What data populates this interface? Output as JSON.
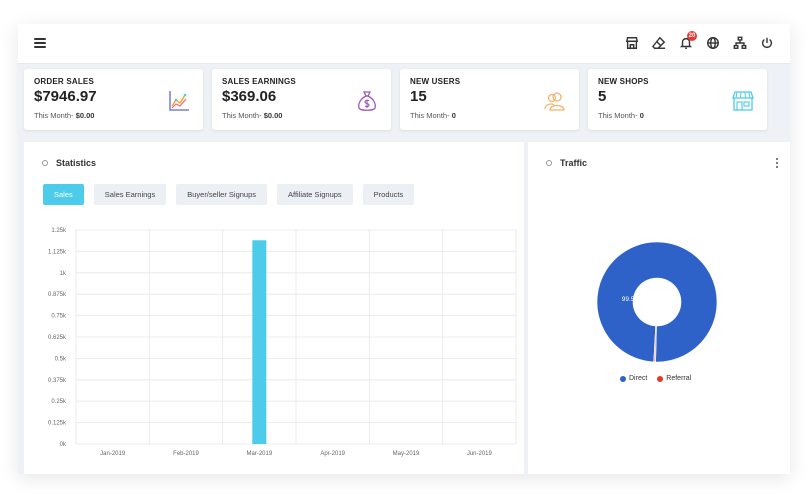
{
  "topbar": {
    "menu_icon": "hamburger-icon",
    "icons": [
      "store-icon",
      "eraser-icon",
      "bell-icon",
      "globe-icon",
      "sitemap-icon",
      "power-icon"
    ],
    "notification_count": "20"
  },
  "cards": [
    {
      "title": "ORDER SALES",
      "value": "$7946.97",
      "sub_label": "This Month-",
      "sub_value": "$0.00",
      "icon": "chart-trend-icon"
    },
    {
      "title": "SALES EARNINGS",
      "value": "$369.06",
      "sub_label": "This Month-",
      "sub_value": "$0.00",
      "icon": "money-bag-icon"
    },
    {
      "title": "NEW USERS",
      "value": "15",
      "sub_label": "This Month-",
      "sub_value": "0",
      "icon": "users-icon"
    },
    {
      "title": "NEW SHOPS",
      "value": "5",
      "sub_label": "This Month-",
      "sub_value": "0",
      "icon": "shop-icon"
    }
  ],
  "statistics": {
    "title": "Statistics",
    "tabs": [
      "Sales",
      "Sales Earnings",
      "Buyer/seller Signups",
      "Affiliate Signups",
      "Products"
    ],
    "active_tab": "Sales"
  },
  "traffic": {
    "title": "Traffic",
    "legend": [
      "Direct",
      "Referral"
    ]
  },
  "colors": {
    "accent": "#4ccbeb",
    "direct": "#2f62c8",
    "referral": "#e03b24",
    "badge": "#e53935"
  },
  "chart_data": [
    {
      "type": "bar",
      "title": "",
      "categories": [
        "Jan-2019",
        "Feb-2019",
        "Mar-2019",
        "Apr-2019",
        "May-2019",
        "Jun-2019"
      ],
      "values": [
        0,
        0,
        1190,
        0,
        0,
        0
      ],
      "ylim": [
        0,
        1250
      ],
      "yticks": [
        "0k",
        "0.125k",
        "0.25k",
        "0.375k",
        "0.5k",
        "0.625k",
        "0.75k",
        "0.875k",
        "1k",
        "1.125k",
        "1.25k"
      ],
      "grid": true,
      "xlabel": "",
      "ylabel": ""
    },
    {
      "type": "pie",
      "donut": true,
      "categories": [
        "Direct",
        "Referral"
      ],
      "values": [
        99.5,
        0.5
      ],
      "data_labels": [
        "99.5%",
        ""
      ],
      "legend": "bottom"
    }
  ]
}
